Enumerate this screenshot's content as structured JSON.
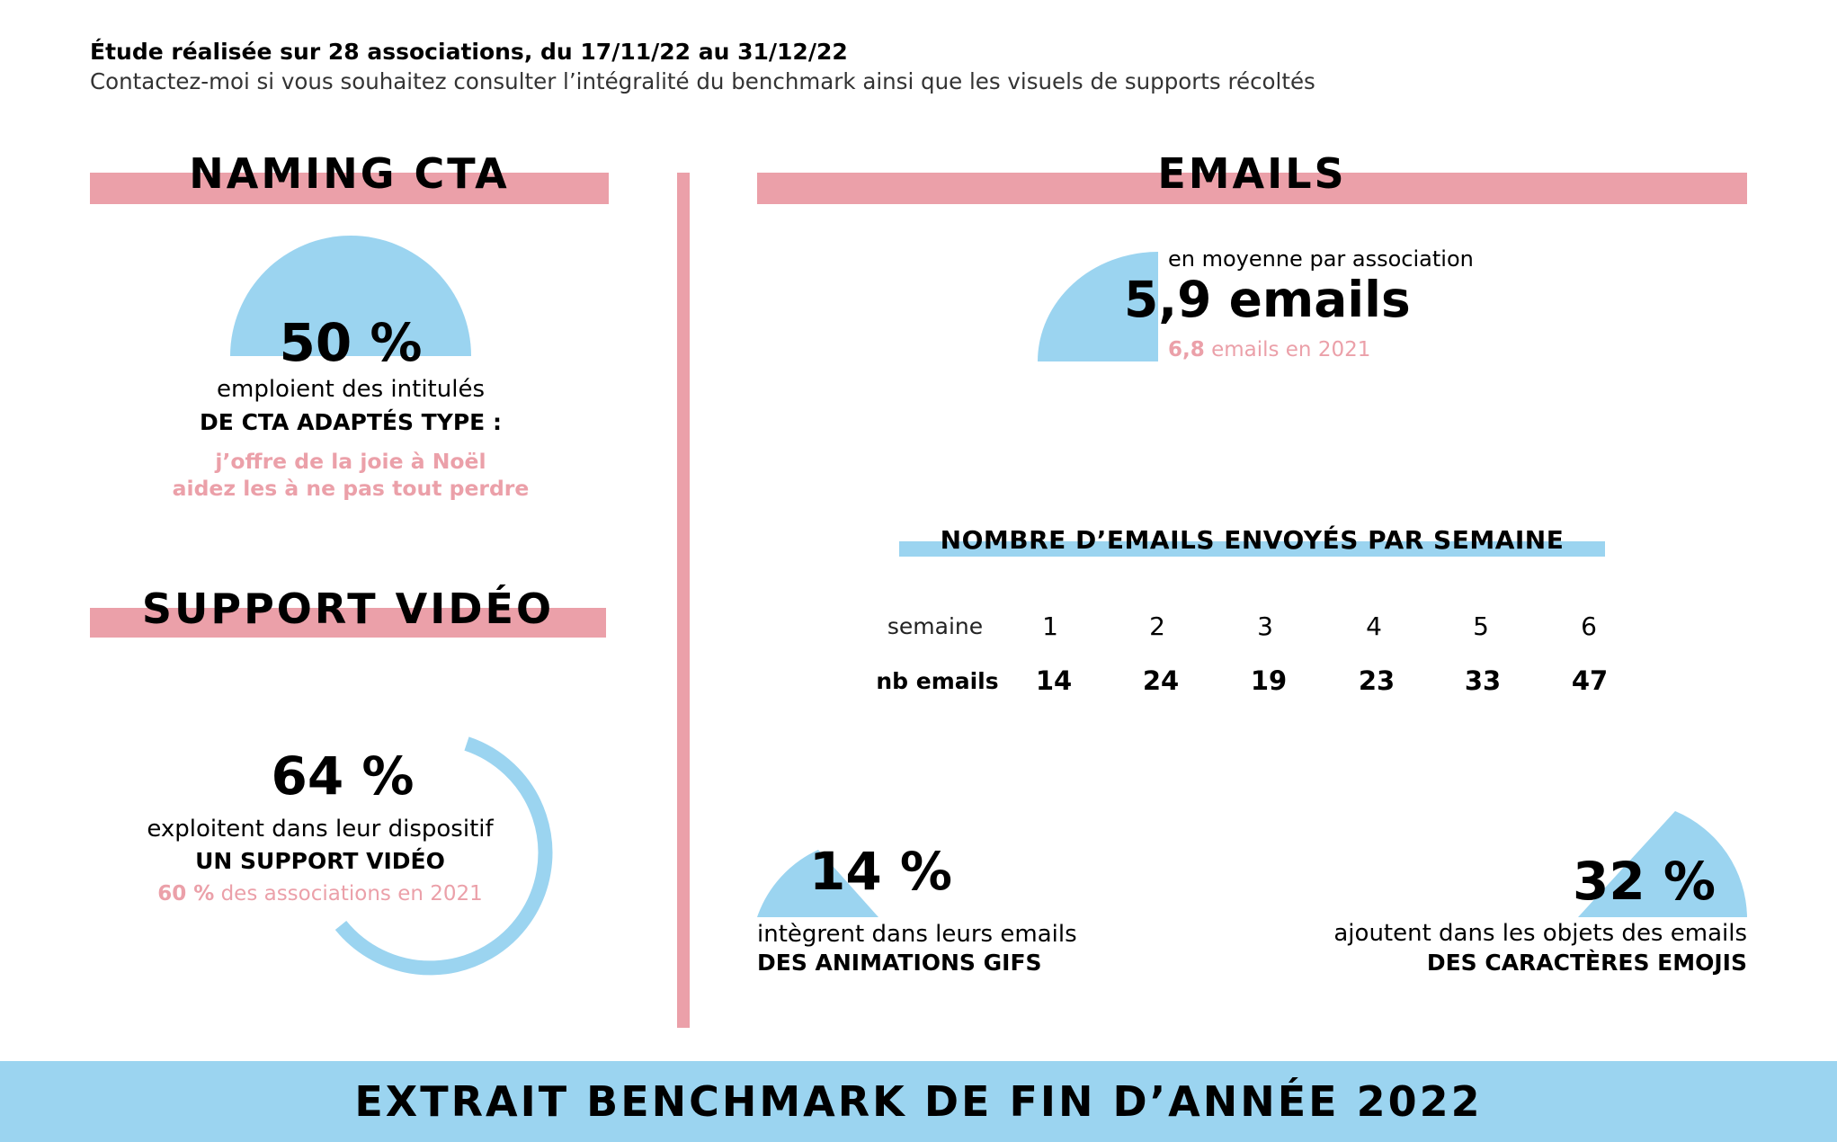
{
  "intro": {
    "line1": "Étude réalisée sur 28 associations, du 17/11/22 au 31/12/22",
    "line2": "Contactez-moi si vous souhaitez consulter l’intégralité du benchmark ainsi que les visuels de supports récoltés"
  },
  "naming": {
    "title": "NAMING CTA",
    "percent": "50 %",
    "value": 0.5,
    "line1": "emploient des intitulés",
    "line2": "DE CTA ADAPTÉS TYPE :",
    "example1": "j’offre de la joie à Noël",
    "example2": "aidez les à ne pas tout perdre"
  },
  "video": {
    "title": "SUPPORT VIDÉO",
    "percent": "64 %",
    "value": 0.64,
    "line1": "exploitent dans leur dispositif",
    "line2": "UN SUPPORT VIDÉO",
    "prev_value": "60 %",
    "prev_text": "des associations en 2021"
  },
  "emails": {
    "title": "EMAILS",
    "avg_caption": "en moyenne par association",
    "avg_value": "5,9 emails",
    "prev_value": "6,8",
    "prev_text": "emails en 2021",
    "table_title": "NOMBRE D’EMAILS ENVOYÉS PAR SEMAINE",
    "row1_label": "semaine",
    "row2_label": "nb emails",
    "weeks": [
      "1",
      "2",
      "3",
      "4",
      "5",
      "6"
    ],
    "counts": [
      "14",
      "24",
      "19",
      "23",
      "33",
      "47"
    ],
    "gif_percent": "14 %",
    "gif_value": 0.14,
    "gif_line1": "intègrent dans leurs emails",
    "gif_line2": "DES ANIMATIONS GIFS",
    "emoji_percent": "32 %",
    "emoji_value": 0.32,
    "emoji_line1": "ajoutent dans les objets des emails",
    "emoji_line2": "DES CARACTÈRES EMOJIS"
  },
  "footer": {
    "title": "EXTRAIT BENCHMARK DE FIN D’ANNÉE 2022"
  },
  "colors": {
    "pink": "#eba0a9",
    "blue": "#9bd4f0",
    "text": "#000000"
  }
}
